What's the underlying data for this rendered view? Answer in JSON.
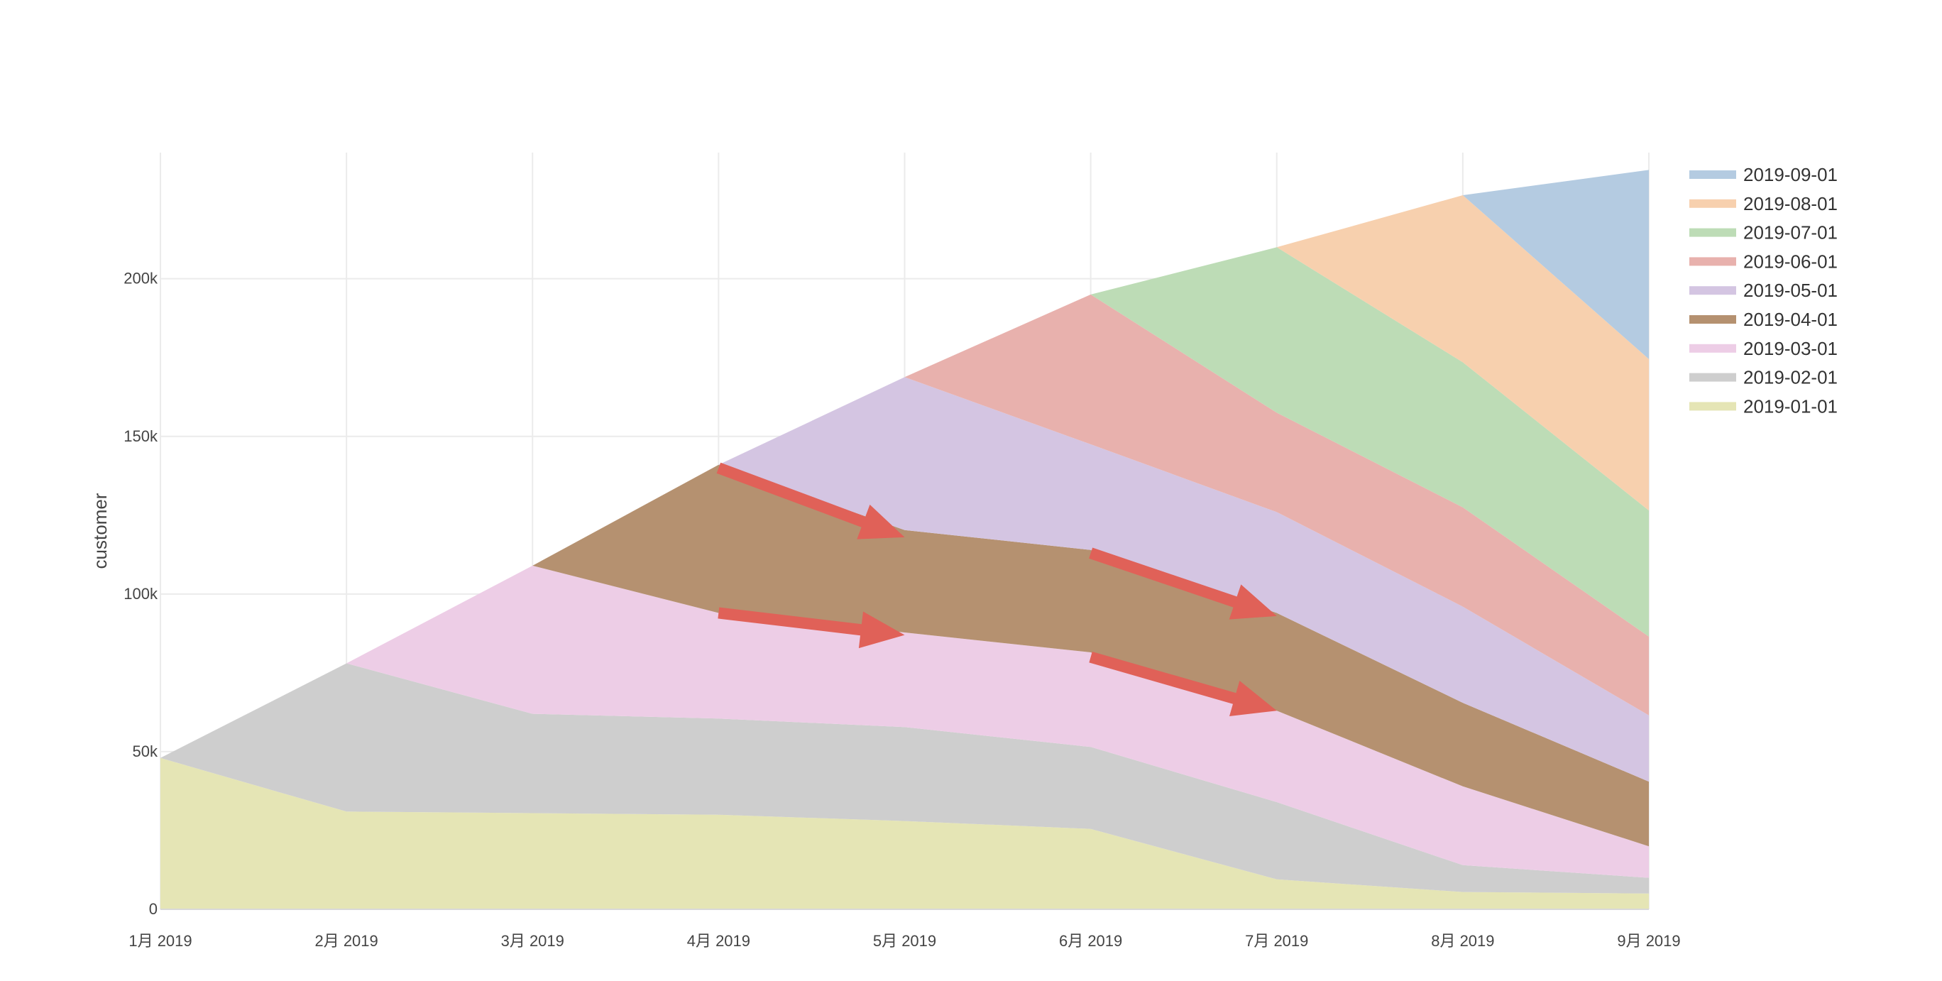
{
  "chart_data": {
    "type": "area",
    "stacked": true,
    "title": "",
    "xlabel": "",
    "ylabel": "customer",
    "categories": [
      "1月 2019",
      "2月 2019",
      "3月 2019",
      "4月 2019",
      "5月 2019",
      "6月 2019",
      "7月 2019",
      "8月 2019",
      "9月 2019"
    ],
    "x_dates": [
      "2019-01-01",
      "2019-02-01",
      "2019-03-01",
      "2019-04-01",
      "2019-05-01",
      "2019-06-01",
      "2019-07-01",
      "2019-08-01",
      "2019-09-01"
    ],
    "ylim": [
      0,
      240000
    ],
    "yticks": [
      0,
      50000,
      100000,
      150000,
      200000
    ],
    "ytick_labels": [
      "0",
      "50k",
      "100k",
      "150k",
      "200k"
    ],
    "grid": true,
    "legend_position": "top-right",
    "series": [
      {
        "name": "2019-01-01",
        "color": "#e5e5b5",
        "values": [
          48000,
          31000,
          30500,
          30000,
          28000,
          25500,
          9500,
          5500,
          5000
        ]
      },
      {
        "name": "2019-02-01",
        "color": "#cecece",
        "values": [
          0,
          47000,
          31500,
          30500,
          29800,
          26000,
          24500,
          8500,
          5000
        ]
      },
      {
        "name": "2019-03-01",
        "color": "#edcde6",
        "values": [
          0,
          0,
          47000,
          33500,
          30000,
          30000,
          29000,
          25000,
          10000
        ]
      },
      {
        "name": "2019-04-01",
        "color": "#b59170",
        "values": [
          0,
          0,
          0,
          47000,
          32500,
          32500,
          31000,
          26500,
          20500
        ]
      },
      {
        "name": "2019-05-01",
        "color": "#d4c5e2",
        "values": [
          0,
          0,
          0,
          0,
          48500,
          33500,
          32000,
          30500,
          21000
        ]
      },
      {
        "name": "2019-06-01",
        "color": "#e8b1ad",
        "values": [
          0,
          0,
          0,
          0,
          0,
          47500,
          31500,
          31500,
          25000
        ]
      },
      {
        "name": "2019-07-01",
        "color": "#bddcb6",
        "values": [
          0,
          0,
          0,
          0,
          0,
          0,
          52500,
          46000,
          40000
        ]
      },
      {
        "name": "2019-08-01",
        "color": "#f7d0ae",
        "values": [
          0,
          0,
          0,
          0,
          0,
          0,
          0,
          53000,
          48000
        ]
      },
      {
        "name": "2019-09-01",
        "color": "#b4cbe1",
        "values": [
          0,
          0,
          0,
          0,
          0,
          0,
          0,
          0,
          60000
        ]
      }
    ],
    "legend_order": [
      "2019-09-01",
      "2019-08-01",
      "2019-07-01",
      "2019-06-01",
      "2019-05-01",
      "2019-04-01",
      "2019-03-01",
      "2019-02-01",
      "2019-01-01"
    ],
    "annotations": [
      {
        "type": "arrow",
        "color": "#e06158",
        "from": {
          "x": "2019-04-01",
          "y": 140000
        },
        "to": {
          "x": "2019-05-01",
          "y": 118000
        }
      },
      {
        "type": "arrow",
        "color": "#e06158",
        "from": {
          "x": "2019-04-01",
          "y": 94000
        },
        "to": {
          "x": "2019-05-01",
          "y": 87000
        }
      },
      {
        "type": "arrow",
        "color": "#e06158",
        "from": {
          "x": "2019-06-01",
          "y": 113000
        },
        "to": {
          "x": "2019-07-01",
          "y": 93000
        }
      },
      {
        "type": "arrow",
        "color": "#e06158",
        "from": {
          "x": "2019-06-01",
          "y": 80000
        },
        "to": {
          "x": "2019-07-01",
          "y": 63000
        }
      }
    ]
  }
}
